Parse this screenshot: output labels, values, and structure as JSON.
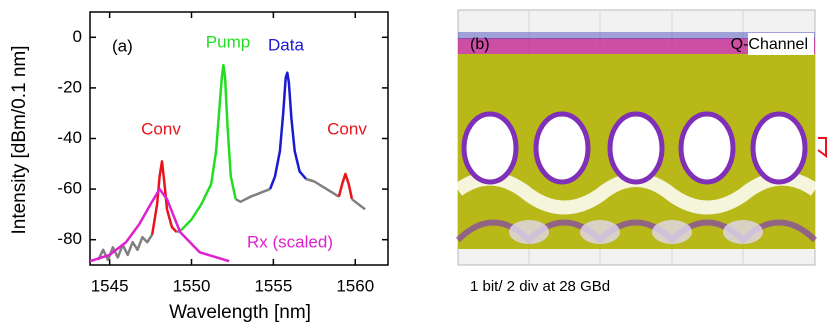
{
  "chart_data": {
    "type": "line",
    "xlabel": "Wavelength [nm]",
    "ylabel": "Intensity [dBm/0.1 nm]",
    "xlim": [
      1543.8,
      1562
    ],
    "xticks": [
      1545,
      1550,
      1555,
      1560
    ],
    "ylim": [
      -90,
      10
    ],
    "yticks": [
      0,
      -20,
      -40,
      -60,
      -80
    ],
    "series": [
      {
        "color": "#808080",
        "x": [
          1544.3,
          1544.6,
          1544.9,
          1545.2,
          1545.5,
          1545.8,
          1546.1,
          1546.4,
          1546.7,
          1547.0,
          1547.3,
          1547.6
        ],
        "values": [
          -88,
          -84,
          -88,
          -83,
          -87,
          -82,
          -86,
          -81,
          -84,
          -79,
          -81,
          -78
        ]
      },
      {
        "color": "#e8141c",
        "x": [
          1547.6,
          1547.9,
          1548.05,
          1548.2,
          1548.35,
          1548.5,
          1548.8,
          1549.1
        ],
        "values": [
          -78,
          -66,
          -55,
          -49,
          -58,
          -68,
          -75,
          -77
        ]
      },
      {
        "color": "#808080",
        "x": [
          1549.1,
          1549.4
        ],
        "values": [
          -77,
          -76
        ]
      },
      {
        "color": "#22dd22",
        "x": [
          1549.4,
          1550.0,
          1550.6,
          1551.2,
          1551.5,
          1551.7,
          1551.85,
          1551.95,
          1552.05,
          1552.2,
          1552.4,
          1552.7
        ],
        "values": [
          -76,
          -72,
          -66,
          -58,
          -45,
          -28,
          -16,
          -11,
          -16,
          -35,
          -55,
          -64
        ]
      },
      {
        "color": "#808080",
        "x": [
          1552.7,
          1553.0,
          1553.3,
          1553.6,
          1554.0,
          1554.4,
          1554.8
        ],
        "values": [
          -64,
          -65,
          -64,
          -63,
          -62,
          -61,
          -60
        ]
      },
      {
        "color": "#1a1ad0",
        "x": [
          1554.8,
          1555.1,
          1555.4,
          1555.6,
          1555.75,
          1555.85,
          1555.95,
          1556.1,
          1556.3,
          1556.6,
          1557.0
        ],
        "values": [
          -60,
          -55,
          -45,
          -30,
          -16,
          -14,
          -18,
          -32,
          -45,
          -53,
          -56
        ]
      },
      {
        "color": "#808080",
        "x": [
          1557.0,
          1557.5,
          1558.0,
          1558.5,
          1559.0
        ],
        "values": [
          -56,
          -57,
          -59,
          -61,
          -63
        ]
      },
      {
        "color": "#e8141c",
        "x": [
          1559.0,
          1559.2,
          1559.4,
          1559.6,
          1559.8
        ],
        "values": [
          -63,
          -58,
          -54,
          -58,
          -64
        ]
      },
      {
        "color": "#808080",
        "x": [
          1559.8,
          1560.2,
          1560.6
        ],
        "values": [
          -64,
          -66,
          -68
        ]
      },
      {
        "color": "#e020d0",
        "x": [
          1543.8,
          1545,
          1546,
          1546.8,
          1547.5,
          1548.05,
          1548.5,
          1549.3,
          1550.5,
          1552.3
        ],
        "values": [
          -88.5,
          -86,
          -81,
          -74,
          -66,
          -60,
          -64,
          -77,
          -85,
          -88.5
        ]
      }
    ],
    "annotations": [
      {
        "text": "(a)",
        "color": "#000000"
      },
      {
        "text": "Pump",
        "color": "#22dd22"
      },
      {
        "text": "Data",
        "color": "#1a1ad0"
      },
      {
        "text": "Conv",
        "color": "#e8141c"
      },
      {
        "text": "Conv",
        "color": "#e8141c"
      },
      {
        "text": "Rx (scaled)",
        "color": "#e020d0"
      }
    ]
  },
  "eye_diagram": {
    "label": "(b)",
    "channel": "Q-Channel",
    "caption": "1 bit/ 2 div at 28 GBd"
  }
}
